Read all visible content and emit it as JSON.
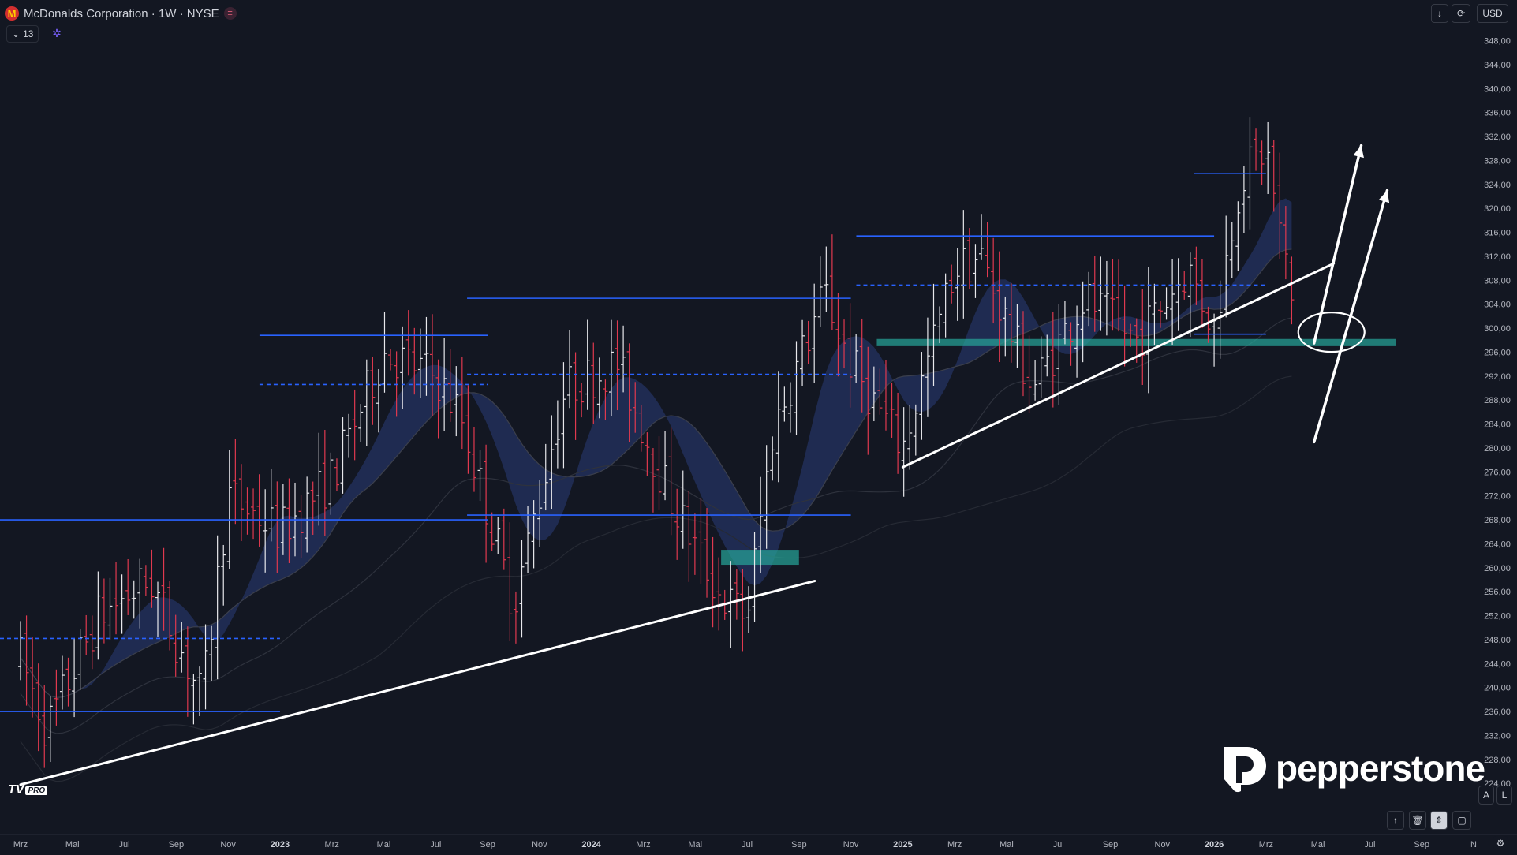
{
  "header": {
    "title": "McDonalds Corporation · 1W · NYSE",
    "indicator_count": "13",
    "currency": "USD"
  },
  "icons": [
    "mcdonalds-logo-icon",
    "chevron-down-icon",
    "settings-gear-icon",
    "arrow-down-icon",
    "refresh-icon",
    "arrow-up-icon",
    "trash-icon",
    "chevron-updown-icon",
    "square-icon",
    "settings-icon"
  ],
  "price_axis": {
    "ticks": [
      "348,00",
      "344,00",
      "340,00",
      "336,00",
      "332,00",
      "328,00",
      "324,00",
      "320,00",
      "316,00",
      "312,00",
      "308,00",
      "304,00",
      "300,00",
      "296,00",
      "292,00",
      "288,00",
      "284,00",
      "280,00",
      "276,00",
      "272,00",
      "268,00",
      "264,00",
      "260,00",
      "256,00",
      "252,00",
      "248,00",
      "244,00",
      "240,00",
      "236,00",
      "232,00",
      "228,00",
      "224,00"
    ],
    "mode_auto": "A",
    "mode_log": "L"
  },
  "time_axis": {
    "labels": [
      "Mrz",
      "Mai",
      "Jul",
      "Sep",
      "Nov",
      "2023",
      "Mrz",
      "Mai",
      "Jul",
      "Sep",
      "Nov",
      "2024",
      "Mrz",
      "Mai",
      "Jul",
      "Sep",
      "Nov",
      "2025",
      "Mrz",
      "Mai",
      "Jul",
      "Sep",
      "Nov",
      "2026",
      "Mrz",
      "Mai",
      "Jul",
      "Sep",
      "N"
    ],
    "bold_labels": [
      "2023",
      "2024",
      "2025",
      "2026"
    ]
  },
  "watermark": {
    "brand": "pepperstone",
    "platform_badge": "PRO"
  },
  "colors": {
    "background": "#131722",
    "up_bar": "#e8e8ec",
    "down_bar": "#e0394f",
    "level_line": "#2962ff",
    "zone": "#26a69a",
    "ribbon": "#2a3d78",
    "trendline": "#ffffff"
  },
  "chart_data": {
    "type": "ohlc",
    "interval": "1W",
    "price_range": [
      221,
      349
    ],
    "time_range": [
      "2022-03",
      "2026-11"
    ],
    "grid": false,
    "series_anchor_closes": [
      {
        "t": "2022-03",
        "v": 245
      },
      {
        "t": "2022-04",
        "v": 233
      },
      {
        "t": "2022-06",
        "v": 252
      },
      {
        "t": "2022-08",
        "v": 258
      },
      {
        "t": "2022-10",
        "v": 238
      },
      {
        "t": "2022-11",
        "v": 272
      },
      {
        "t": "2023-01",
        "v": 266
      },
      {
        "t": "2023-03",
        "v": 275
      },
      {
        "t": "2023-05",
        "v": 296
      },
      {
        "t": "2023-07",
        "v": 292
      },
      {
        "t": "2023-08",
        "v": 285
      },
      {
        "t": "2023-10",
        "v": 254
      },
      {
        "t": "2023-12",
        "v": 290
      },
      {
        "t": "2024-02",
        "v": 294
      },
      {
        "t": "2024-04",
        "v": 272
      },
      {
        "t": "2024-06",
        "v": 255
      },
      {
        "t": "2024-07",
        "v": 252
      },
      {
        "t": "2024-08",
        "v": 283
      },
      {
        "t": "2024-10",
        "v": 306
      },
      {
        "t": "2024-11",
        "v": 294
      },
      {
        "t": "2025-01",
        "v": 280
      },
      {
        "t": "2025-03",
        "v": 310
      },
      {
        "t": "2025-04",
        "v": 312
      },
      {
        "t": "2025-06",
        "v": 290
      },
      {
        "t": "2025-08",
        "v": 305
      },
      {
        "t": "2025-10",
        "v": 298
      },
      {
        "t": "2025-12",
        "v": 310
      },
      {
        "t": "2026-01",
        "v": 300
      },
      {
        "t": "2026-02",
        "v": 325
      },
      {
        "t": "2026-03",
        "v": 330
      },
      {
        "t": "2026-04",
        "v": 304
      }
    ],
    "horizontal_levels": [
      {
        "price": 268.0,
        "from": "2022-03",
        "to": "2023-09",
        "style": "solid"
      },
      {
        "price": 236.0,
        "from": "2022-03",
        "to": "2023-01",
        "style": "solid"
      },
      {
        "price": 248.2,
        "from": "2022-03",
        "to": "2023-01",
        "style": "dashed"
      },
      {
        "price": 298.8,
        "from": "2023-01",
        "to": "2023-09",
        "style": "solid"
      },
      {
        "price": 290.6,
        "from": "2023-01",
        "to": "2023-09",
        "style": "dashed"
      },
      {
        "price": 268.8,
        "from": "2023-09",
        "to": "2024-11",
        "style": "solid"
      },
      {
        "price": 305.0,
        "from": "2023-09",
        "to": "2024-11",
        "style": "solid"
      },
      {
        "price": 292.3,
        "from": "2023-09",
        "to": "2024-11",
        "style": "dashed"
      },
      {
        "price": 315.4,
        "from": "2024-12",
        "to": "2026-01",
        "style": "solid"
      },
      {
        "price": 307.2,
        "from": "2024-12",
        "to": "2026-03",
        "style": "dashed"
      },
      {
        "price": 325.8,
        "from": "2026-01",
        "to": "2026-03",
        "style": "solid"
      },
      {
        "price": 299.0,
        "from": "2026-01",
        "to": "2026-03",
        "style": "solid"
      }
    ],
    "zones": [
      {
        "from": "2024-06",
        "to": "2024-09",
        "top": 263.0,
        "bottom": 260.5
      },
      {
        "from": "2024-12",
        "to": "2026-08",
        "top": 298.2,
        "bottom": 297.0
      }
    ],
    "trendlines": [
      {
        "from": {
          "t": "2022-03",
          "v": 223.8
        },
        "to": {
          "t": "2024-09",
          "v": 257.8
        }
      },
      {
        "from": {
          "t": "2025-01",
          "v": 276.8
        },
        "to": {
          "t": "2026-05",
          "v": 310.8
        }
      }
    ],
    "arrows": [
      {
        "from": {
          "t": "2026-04",
          "v": 297.5
        },
        "to": {
          "t": "2026-06",
          "v": 330.5
        }
      },
      {
        "from": {
          "t": "2026-04",
          "v": 281.0
        },
        "to": {
          "t": "2026-07",
          "v": 323.0
        }
      }
    ],
    "ellipse": {
      "t": "2026-04",
      "v": 300.0
    }
  }
}
